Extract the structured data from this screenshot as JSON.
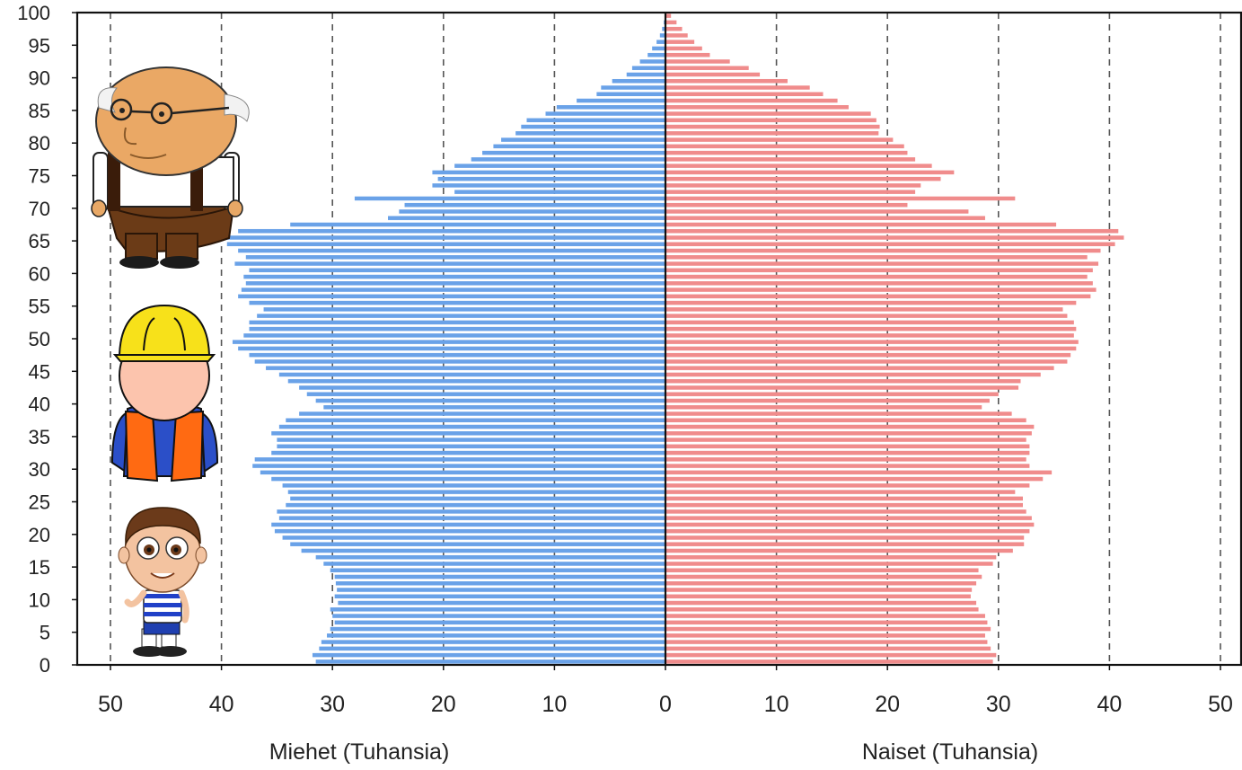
{
  "chart_data": {
    "type": "bar",
    "orientation": "horizontal",
    "kind": "population-pyramid",
    "ages": [
      0,
      1,
      2,
      3,
      4,
      5,
      6,
      7,
      8,
      9,
      10,
      11,
      12,
      13,
      14,
      15,
      16,
      17,
      18,
      19,
      20,
      21,
      22,
      23,
      24,
      25,
      26,
      27,
      28,
      29,
      30,
      31,
      32,
      33,
      34,
      35,
      36,
      37,
      38,
      39,
      40,
      41,
      42,
      43,
      44,
      45,
      46,
      47,
      48,
      49,
      50,
      51,
      52,
      53,
      54,
      55,
      56,
      57,
      58,
      59,
      60,
      61,
      62,
      63,
      64,
      65,
      66,
      67,
      68,
      69,
      70,
      71,
      72,
      73,
      74,
      75,
      76,
      77,
      78,
      79,
      80,
      81,
      82,
      83,
      84,
      85,
      86,
      87,
      88,
      89,
      90,
      91,
      92,
      93,
      94,
      95,
      96,
      97,
      98,
      99
    ],
    "series": [
      {
        "name": "Miehet (Tuhansia)",
        "color": "#6aa2e8",
        "values": [
          31.5,
          31.8,
          31.2,
          31.0,
          30.5,
          30.2,
          29.8,
          30.0,
          30.2,
          29.5,
          29.8,
          29.6,
          29.7,
          29.8,
          30.2,
          30.8,
          31.5,
          32.8,
          33.8,
          34.5,
          35.2,
          35.5,
          34.8,
          35.0,
          34.2,
          33.8,
          34.0,
          34.5,
          35.5,
          36.5,
          37.2,
          37.0,
          35.5,
          35.0,
          35.0,
          35.5,
          34.8,
          34.2,
          33.0,
          30.8,
          31.5,
          32.3,
          33.0,
          34.0,
          34.8,
          36.0,
          37.0,
          37.5,
          38.5,
          39.0,
          38.0,
          37.5,
          37.5,
          36.8,
          36.2,
          37.5,
          38.5,
          38.2,
          37.8,
          38.0,
          37.5,
          38.8,
          37.8,
          38.5,
          39.5,
          39.5,
          38.5,
          33.8,
          25.0,
          24.0,
          23.5,
          28.0,
          19.0,
          21.0,
          20.5,
          21.0,
          19.0,
          17.5,
          16.5,
          15.5,
          14.8,
          13.5,
          13.0,
          12.5,
          10.8,
          9.8,
          8.0,
          6.2,
          5.8,
          4.8,
          3.5,
          3.0,
          2.3,
          1.6,
          1.2,
          0.8,
          0.5,
          0.3,
          0.15,
          0.05
        ]
      },
      {
        "name": "Naiset (Tuhansia)",
        "color": "#f08c8c",
        "values": [
          29.5,
          29.8,
          29.3,
          29.0,
          28.8,
          29.3,
          29.0,
          28.8,
          28.2,
          28.0,
          27.5,
          27.6,
          28.0,
          28.5,
          28.2,
          29.5,
          29.8,
          31.3,
          32.3,
          32.3,
          32.8,
          33.2,
          33.0,
          32.5,
          32.2,
          32.2,
          31.5,
          32.8,
          34.0,
          34.8,
          32.8,
          32.5,
          32.8,
          32.8,
          32.5,
          33.0,
          33.2,
          32.5,
          31.2,
          28.5,
          29.2,
          30.0,
          31.8,
          32.0,
          33.8,
          35.0,
          36.2,
          36.5,
          37.0,
          37.2,
          36.8,
          37.0,
          36.8,
          36.2,
          35.8,
          37.0,
          38.3,
          38.8,
          38.5,
          38.0,
          38.5,
          39.0,
          38.0,
          39.2,
          40.5,
          41.3,
          40.8,
          35.2,
          28.8,
          27.3,
          21.8,
          31.5,
          22.5,
          23.0,
          24.8,
          26.0,
          24.0,
          22.5,
          21.8,
          21.5,
          20.5,
          19.2,
          19.3,
          19.0,
          18.5,
          16.5,
          15.5,
          14.2,
          13.0,
          11.0,
          8.5,
          7.5,
          5.8,
          4.0,
          3.3,
          2.6,
          2.0,
          1.5,
          1.0,
          0.5
        ]
      }
    ],
    "y_tick_labels": [
      "0",
      "5",
      "10",
      "15",
      "20",
      "25",
      "30",
      "35",
      "40",
      "45",
      "50",
      "55",
      "60",
      "65",
      "70",
      "75",
      "80",
      "85",
      "90",
      "95",
      "100"
    ],
    "x_tick_labels_left": [
      "50",
      "40",
      "30",
      "20",
      "10"
    ],
    "x_tick_labels_right": [
      "0",
      "10",
      "20",
      "30",
      "40",
      "50"
    ],
    "x_range": [
      -53,
      52
    ],
    "y_range": [
      0,
      100
    ],
    "xlabel_left": "Miehet (Tuhansia)",
    "xlabel_right": "Naiset (Tuhansia)",
    "grid": "vertical-dashed",
    "illustrations": [
      {
        "name": "elderly-man-illustration",
        "age_band": "old"
      },
      {
        "name": "construction-worker-illustration",
        "age_band": "working-age"
      },
      {
        "name": "boy-illustration",
        "age_band": "child"
      }
    ]
  }
}
